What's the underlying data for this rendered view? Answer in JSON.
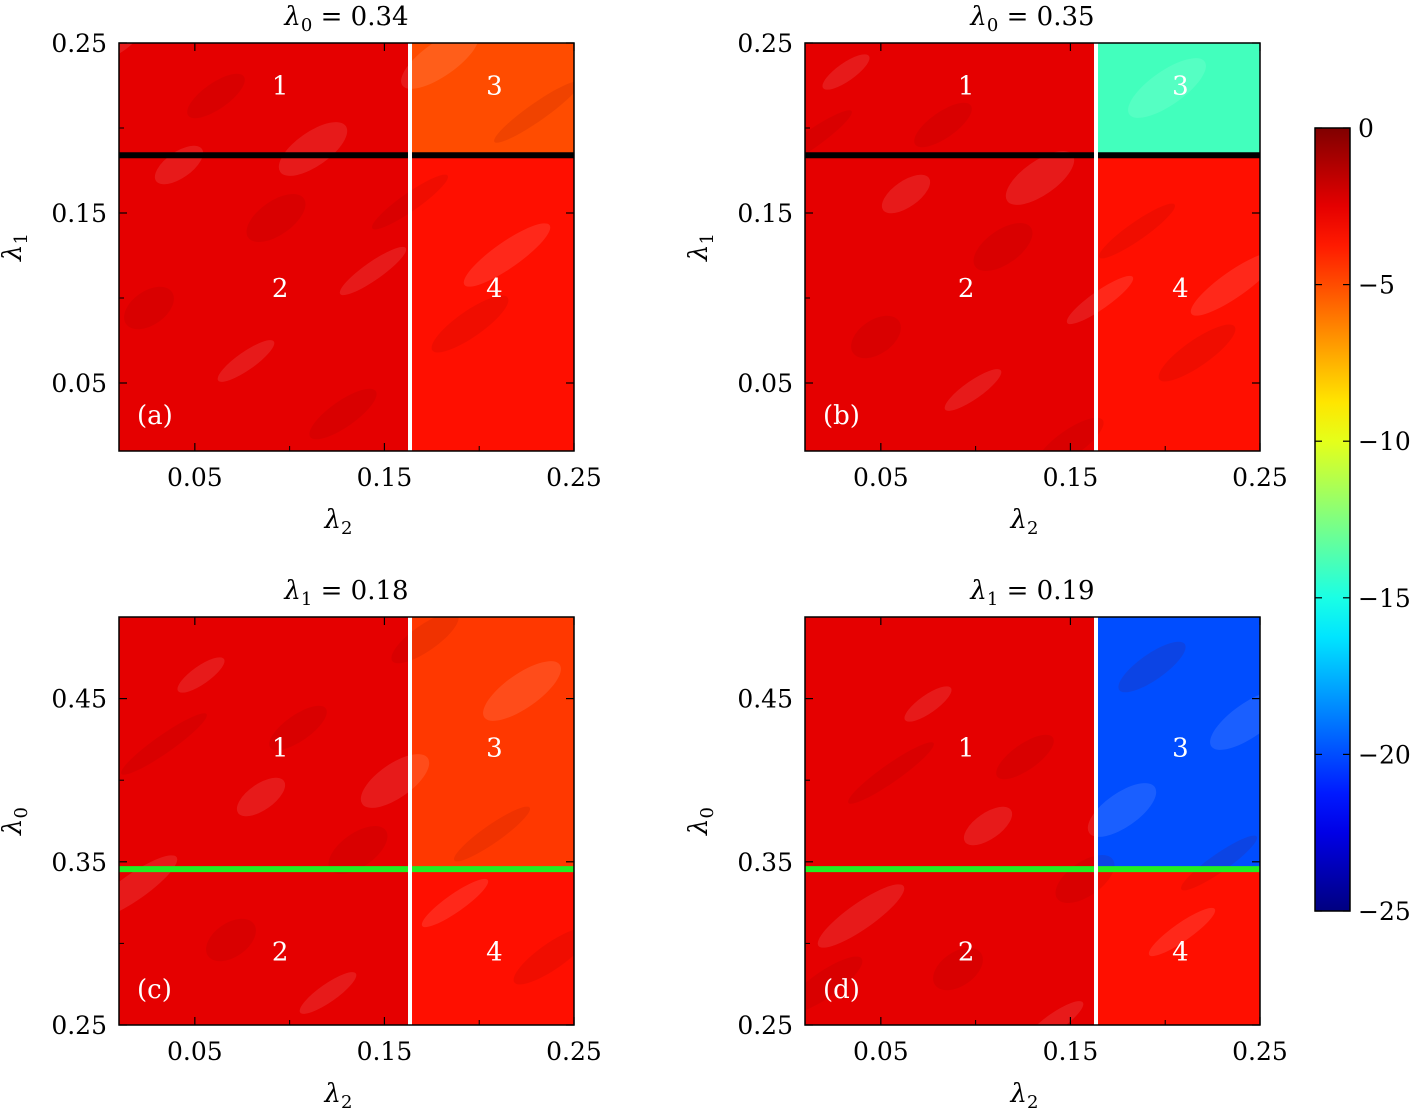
{
  "chart_data": [
    {
      "type": "heatmap",
      "panel_label": "(a)",
      "title": {
        "symbol": "λ",
        "subscript": "0",
        "equals": " = 0.34"
      },
      "xlabel": {
        "symbol": "λ",
        "subscript": "2"
      },
      "ylabel": {
        "symbol": "λ",
        "subscript": "1"
      },
      "xlim": [
        0.01,
        0.25
      ],
      "ylim": [
        0.01,
        0.25
      ],
      "xticks": [
        0.05,
        0.15,
        0.25
      ],
      "xtick_labels": [
        "0.05",
        "0.15",
        "0.25"
      ],
      "yticks": [
        0.05,
        0.15,
        0.25
      ],
      "ytick_labels": [
        "0.05",
        "0.15",
        "0.25"
      ],
      "vline": {
        "x": 0.1635,
        "color": "#ffffff"
      },
      "hline": {
        "y": 0.184,
        "color": "#000000"
      },
      "regions": [
        {
          "label": "1",
          "x": [
            0.01,
            0.1635
          ],
          "y": [
            0.184,
            0.25
          ],
          "value": -2.5
        },
        {
          "label": "3",
          "x": [
            0.1635,
            0.25
          ],
          "y": [
            0.184,
            0.25
          ],
          "value": -5.0
        },
        {
          "label": "2",
          "x": [
            0.01,
            0.1635
          ],
          "y": [
            0.01,
            0.184
          ],
          "value": -2.5
        },
        {
          "label": "4",
          "x": [
            0.1635,
            0.25
          ],
          "y": [
            0.01,
            0.184
          ],
          "value": -3.5
        }
      ],
      "region_label_positions": [
        {
          "label": "1",
          "x": 0.095,
          "y": 0.225
        },
        {
          "label": "3",
          "x": 0.208,
          "y": 0.225
        },
        {
          "label": "2",
          "x": 0.095,
          "y": 0.106
        },
        {
          "label": "4",
          "x": 0.208,
          "y": 0.106
        }
      ]
    },
    {
      "type": "heatmap",
      "panel_label": "(b)",
      "title": {
        "symbol": "λ",
        "subscript": "0",
        "equals": " = 0.35"
      },
      "xlabel": {
        "symbol": "λ",
        "subscript": "2"
      },
      "ylabel": {
        "symbol": "λ",
        "subscript": "1"
      },
      "xlim": [
        0.01,
        0.25
      ],
      "ylim": [
        0.01,
        0.25
      ],
      "xticks": [
        0.05,
        0.15,
        0.25
      ],
      "xtick_labels": [
        "0.05",
        "0.15",
        "0.25"
      ],
      "yticks": [
        0.05,
        0.15,
        0.25
      ],
      "ytick_labels": [
        "0.05",
        "0.15",
        "0.25"
      ],
      "vline": {
        "x": 0.1635,
        "color": "#ffffff"
      },
      "hline": {
        "y": 0.184,
        "color": "#000000"
      },
      "regions": [
        {
          "label": "1",
          "x": [
            0.01,
            0.1635
          ],
          "y": [
            0.184,
            0.25
          ],
          "value": -2.5
        },
        {
          "label": "3",
          "x": [
            0.1635,
            0.25
          ],
          "y": [
            0.184,
            0.25
          ],
          "value": -14.0
        },
        {
          "label": "2",
          "x": [
            0.01,
            0.1635
          ],
          "y": [
            0.01,
            0.184
          ],
          "value": -2.5
        },
        {
          "label": "4",
          "x": [
            0.1635,
            0.25
          ],
          "y": [
            0.01,
            0.184
          ],
          "value": -3.5
        }
      ],
      "region_label_positions": [
        {
          "label": "1",
          "x": 0.095,
          "y": 0.225
        },
        {
          "label": "3",
          "x": 0.208,
          "y": 0.225
        },
        {
          "label": "2",
          "x": 0.095,
          "y": 0.106
        },
        {
          "label": "4",
          "x": 0.208,
          "y": 0.106
        }
      ]
    },
    {
      "type": "heatmap",
      "panel_label": "(c)",
      "title": {
        "symbol": "λ",
        "subscript": "1",
        "equals": " = 0.18"
      },
      "xlabel": {
        "symbol": "λ",
        "subscript": "2"
      },
      "ylabel": {
        "symbol": "λ",
        "subscript": "0"
      },
      "xlim": [
        0.01,
        0.25
      ],
      "ylim": [
        0.25,
        0.5
      ],
      "xticks": [
        0.05,
        0.15,
        0.25
      ],
      "xtick_labels": [
        "0.05",
        "0.15",
        "0.25"
      ],
      "yticks": [
        0.25,
        0.35,
        0.45
      ],
      "ytick_labels": [
        "0.25",
        "0.35",
        "0.45"
      ],
      "vline": {
        "x": 0.1635,
        "color": "#ffffff"
      },
      "hline": {
        "y": 0.3455,
        "color": "#22ee22"
      },
      "regions": [
        {
          "label": "1",
          "x": [
            0.01,
            0.1635
          ],
          "y": [
            0.3455,
            0.5
          ],
          "value": -2.5
        },
        {
          "label": "3",
          "x": [
            0.1635,
            0.25
          ],
          "y": [
            0.3455,
            0.5
          ],
          "value": -4.5
        },
        {
          "label": "2",
          "x": [
            0.01,
            0.1635
          ],
          "y": [
            0.25,
            0.3455
          ],
          "value": -2.5
        },
        {
          "label": "4",
          "x": [
            0.1635,
            0.25
          ],
          "y": [
            0.25,
            0.3455
          ],
          "value": -3.5
        }
      ],
      "region_label_positions": [
        {
          "label": "1",
          "x": 0.095,
          "y": 0.42
        },
        {
          "label": "3",
          "x": 0.208,
          "y": 0.42
        },
        {
          "label": "2",
          "x": 0.095,
          "y": 0.295
        },
        {
          "label": "4",
          "x": 0.208,
          "y": 0.295
        }
      ]
    },
    {
      "type": "heatmap",
      "panel_label": "(d)",
      "title": {
        "symbol": "λ",
        "subscript": "1",
        "equals": " = 0.19"
      },
      "xlabel": {
        "symbol": "λ",
        "subscript": "2"
      },
      "ylabel": {
        "symbol": "λ",
        "subscript": "0"
      },
      "xlim": [
        0.01,
        0.25
      ],
      "ylim": [
        0.25,
        0.5
      ],
      "xticks": [
        0.05,
        0.15,
        0.25
      ],
      "xtick_labels": [
        "0.05",
        "0.15",
        "0.25"
      ],
      "yticks": [
        0.25,
        0.35,
        0.45
      ],
      "ytick_labels": [
        "0.25",
        "0.35",
        "0.45"
      ],
      "vline": {
        "x": 0.1635,
        "color": "#ffffff"
      },
      "hline": {
        "y": 0.3455,
        "color": "#22ee22"
      },
      "regions": [
        {
          "label": "1",
          "x": [
            0.01,
            0.1635
          ],
          "y": [
            0.3455,
            0.5
          ],
          "value": -2.5
        },
        {
          "label": "3",
          "x": [
            0.1635,
            0.25
          ],
          "y": [
            0.3455,
            0.5
          ],
          "value": -20.0
        },
        {
          "label": "2",
          "x": [
            0.01,
            0.1635
          ],
          "y": [
            0.25,
            0.3455
          ],
          "value": -2.5
        },
        {
          "label": "4",
          "x": [
            0.1635,
            0.25
          ],
          "y": [
            0.25,
            0.3455
          ],
          "value": -3.5
        }
      ],
      "region_label_positions": [
        {
          "label": "1",
          "x": 0.095,
          "y": 0.42
        },
        {
          "label": "3",
          "x": 0.208,
          "y": 0.42
        },
        {
          "label": "2",
          "x": 0.095,
          "y": 0.295
        },
        {
          "label": "4",
          "x": 0.208,
          "y": 0.295
        }
      ]
    }
  ],
  "colorbar": {
    "range": [
      -25,
      0
    ],
    "ticks": [
      0,
      -5,
      -10,
      -15,
      -20,
      -25
    ],
    "tick_labels": [
      "0",
      "−5",
      "−10",
      "−15",
      "−20",
      "−25"
    ],
    "colormap": "jet"
  }
}
